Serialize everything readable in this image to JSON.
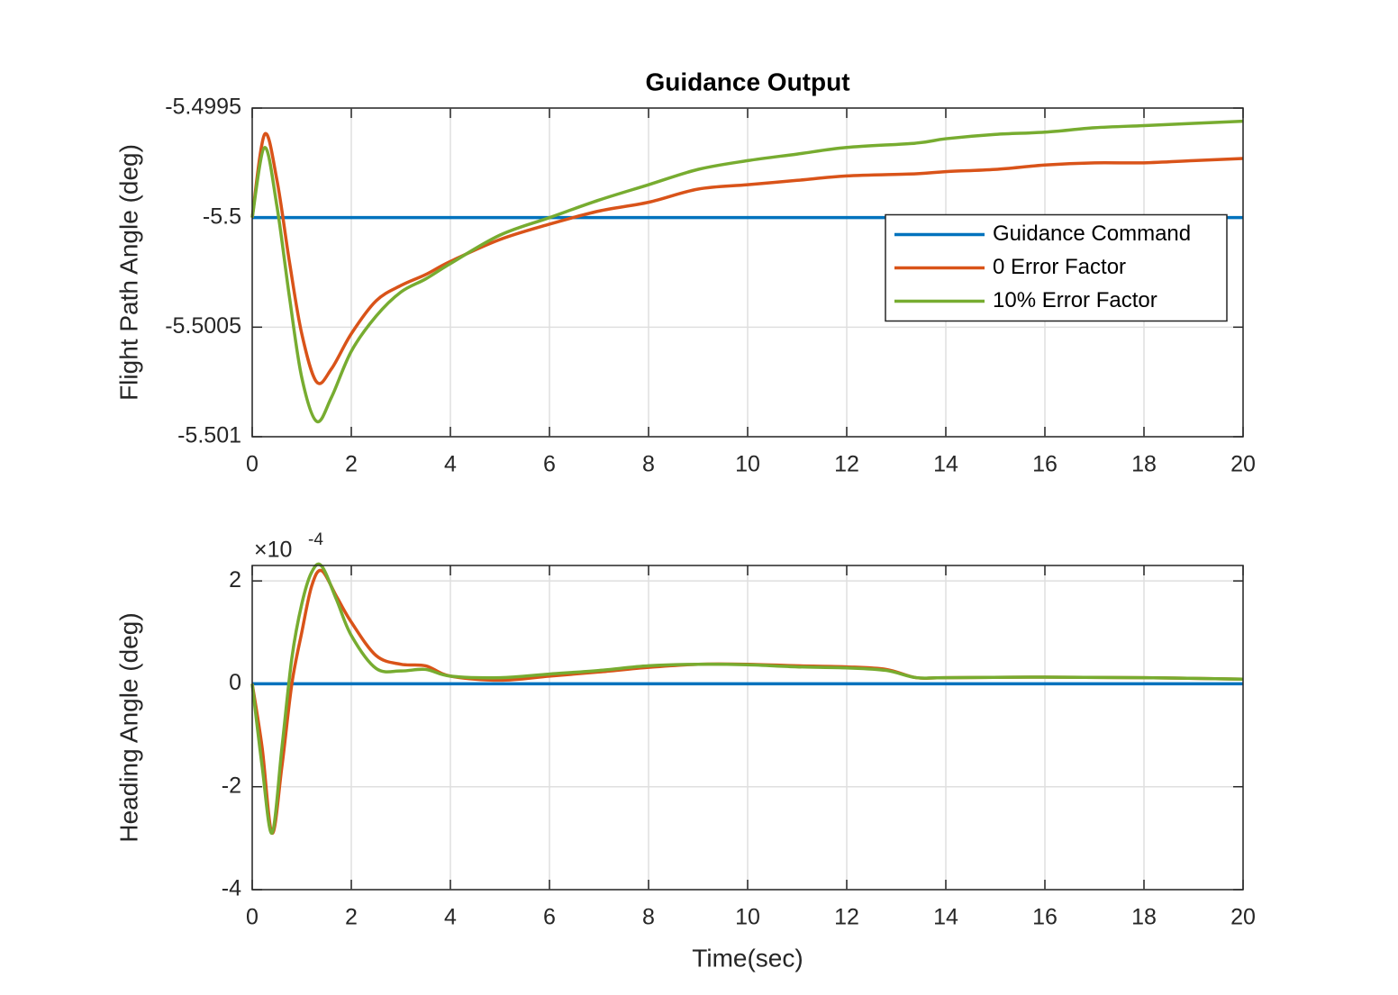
{
  "chart_data": [
    {
      "type": "line",
      "title": "Guidance Output",
      "y_label": "Flight Path Angle (deg)",
      "x": [
        0,
        0.25,
        0.5,
        0.75,
        1,
        1.3,
        1.6,
        2,
        2.5,
        3,
        3.5,
        4,
        5,
        6,
        7,
        8,
        9,
        10,
        11,
        12,
        13.4,
        14,
        15,
        16,
        17,
        18,
        19,
        20
      ],
      "series": [
        {
          "name": "Guidance Command",
          "color": "#0072bd",
          "values": [
            -5.5,
            -5.5,
            -5.5,
            -5.5,
            -5.5,
            -5.5,
            -5.5,
            -5.5,
            -5.5,
            -5.5,
            -5.5,
            -5.5,
            -5.5,
            -5.5,
            -5.5,
            -5.5,
            -5.5,
            -5.5,
            -5.5,
            -5.5,
            -5.5,
            -5.5,
            -5.5,
            -5.5,
            -5.5,
            -5.5,
            -5.5,
            -5.5
          ]
        },
        {
          "name": "0 Error Factor",
          "color": "#d95319",
          "values": [
            -5.5,
            -5.49962,
            -5.49983,
            -5.5002,
            -5.50053,
            -5.50075,
            -5.50069,
            -5.50053,
            -5.50038,
            -5.50031,
            -5.50026,
            -5.5002,
            -5.5001,
            -5.50003,
            -5.49997,
            -5.49993,
            -5.49987,
            -5.49985,
            -5.49983,
            -5.49981,
            -5.4998,
            -5.49979,
            -5.49978,
            -5.49976,
            -5.49975,
            -5.49975,
            -5.49974,
            -5.49973
          ]
        },
        {
          "name": "10% Error Factor",
          "color": "#77ac30",
          "values": [
            -5.5,
            -5.49968,
            -5.49995,
            -5.50036,
            -5.50073,
            -5.50093,
            -5.50082,
            -5.50061,
            -5.50045,
            -5.50034,
            -5.50028,
            -5.50021,
            -5.50008,
            -5.5,
            -5.49992,
            -5.49985,
            -5.49978,
            -5.49974,
            -5.49971,
            -5.49968,
            -5.49966,
            -5.49964,
            -5.49962,
            -5.49961,
            -5.49959,
            -5.49958,
            -5.49957,
            -5.49956
          ]
        }
      ],
      "xlim": [
        0,
        20
      ],
      "xticks": [
        0,
        2,
        4,
        6,
        8,
        10,
        12,
        14,
        16,
        18,
        20
      ],
      "ylim": [
        -5.501,
        -5.4995
      ],
      "yticks": [
        -5.501,
        -5.5005,
        -5.5,
        -5.4995
      ],
      "grid": true,
      "legend": "right"
    },
    {
      "type": "line",
      "y_label": "Heading Angle (deg)",
      "x_label": "Time(sec)",
      "y_multiplier": "×10",
      "y_multiplier_exponent": "-4",
      "x": [
        0,
        0.2,
        0.4,
        0.6,
        0.8,
        1,
        1.2,
        1.4,
        1.7,
        2,
        2.5,
        3,
        3.5,
        4,
        5,
        6,
        7,
        8,
        9,
        10,
        11,
        12,
        12.8,
        13.4,
        14,
        16,
        18,
        20
      ],
      "series": [
        {
          "name": "Guidance Command",
          "color": "#0072bd",
          "values": [
            0,
            0,
            0,
            0,
            0,
            0,
            0,
            0,
            0,
            0,
            0,
            0,
            0,
            0,
            0,
            0,
            0,
            0,
            0,
            0,
            0,
            0,
            0,
            0,
            0,
            0,
            0,
            0
          ]
        },
        {
          "name": "0 Error Factor",
          "color": "#d95319",
          "values": [
            0,
            -1.24,
            -2.9,
            -1.6,
            0,
            1.0,
            1.9,
            2.2,
            1.7,
            1.2,
            0.55,
            0.38,
            0.35,
            0.15,
            0.07,
            0.15,
            0.23,
            0.32,
            0.38,
            0.38,
            0.35,
            0.33,
            0.28,
            0.12,
            0.12,
            0.13,
            0.12,
            0.09
          ]
        },
        {
          "name": "10% Error Factor",
          "color": "#77ac30",
          "values": [
            0,
            -1.6,
            -2.9,
            -1.24,
            0.5,
            1.55,
            2.17,
            2.29,
            1.64,
            0.94,
            0.3,
            0.25,
            0.28,
            0.15,
            0.12,
            0.19,
            0.26,
            0.35,
            0.38,
            0.37,
            0.33,
            0.31,
            0.26,
            0.12,
            0.12,
            0.13,
            0.12,
            0.09
          ]
        }
      ],
      "xlim": [
        0,
        20
      ],
      "xticks": [
        0,
        2,
        4,
        6,
        8,
        10,
        12,
        14,
        16,
        18,
        20
      ],
      "ylim": [
        -4,
        2.3
      ],
      "yticks": [
        -4,
        -2,
        0,
        2
      ],
      "grid": true
    }
  ]
}
